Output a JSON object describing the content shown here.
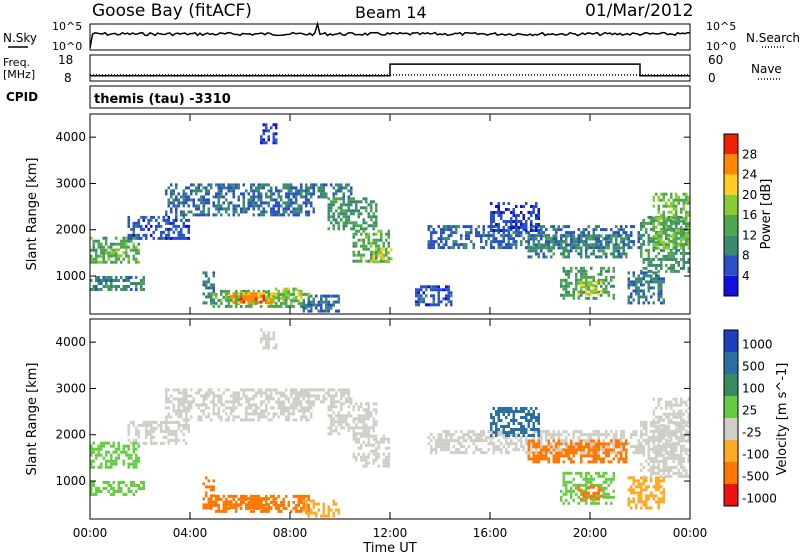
{
  "header": {
    "station": "Goose Bay (fitACF)",
    "beam": "Beam 14",
    "date": "01/Mar/2012"
  },
  "noise_panel": {
    "left_label": "N.Sky",
    "left_ticks": [
      "10^5",
      "10^0"
    ],
    "right_label": "N.Search",
    "right_ticks": [
      "10^5",
      "10^0"
    ]
  },
  "freq_panel": {
    "left_label_1": "Freq.",
    "left_label_2": "[MHz]",
    "left_ticks": [
      "18",
      "8"
    ],
    "right_label": "Nave",
    "right_ticks": [
      "60",
      "0"
    ]
  },
  "cpid_panel": {
    "label": "CPID",
    "value": "themis (tau) -3310"
  },
  "x_axis": {
    "label": "Time UT",
    "ticks": [
      "00:00",
      "04:00",
      "08:00",
      "12:00",
      "16:00",
      "20:00",
      "00:00"
    ]
  },
  "power_panel": {
    "ylabel": "Slant Range [km]",
    "yticks": [
      "1000",
      "2000",
      "3000",
      "4000"
    ],
    "colorbar_label": "Power [dB]",
    "colorbar_ticks": [
      "4",
      "8",
      "12",
      "16",
      "20",
      "24",
      "28"
    ],
    "colorbar_colors": [
      "#1010e0",
      "#2a50c8",
      "#3a8a70",
      "#4fa64f",
      "#88cc33",
      "#ffcc22",
      "#ff8800",
      "#ee2200"
    ]
  },
  "velocity_panel": {
    "ylabel": "Slant Range [km]",
    "yticks": [
      "1000",
      "2000",
      "3000",
      "4000"
    ],
    "colorbar_label": "Velocity [m s^-1]",
    "colorbar_ticks": [
      "1000",
      "500",
      "100",
      "25",
      "-25",
      "-100",
      "-500",
      "-1000"
    ],
    "colorbar_colors": [
      "#1a3fbf",
      "#2a6fa0",
      "#3a8a60",
      "#66cc44",
      "#cfcfc8",
      "#ffaa22",
      "#ff7700",
      "#ee1111"
    ]
  },
  "chart_data": {
    "type": "heatmap",
    "x_range_hours": [
      0,
      24
    ],
    "y_range_km": [
      180,
      4500
    ],
    "freq_mhz": {
      "segments": [
        {
          "from": 0,
          "to": 12,
          "value": 10
        },
        {
          "from": 12,
          "to": 22,
          "value": 14.5
        },
        {
          "from": 22,
          "to": 24,
          "value": 10
        }
      ]
    },
    "nave": {
      "value": 14
    },
    "power_bands": [
      {
        "t0": 0.0,
        "t1": 2.0,
        "r0": 1300,
        "r1": 1850,
        "v": 14
      },
      {
        "t0": 0.4,
        "t1": 1.5,
        "r0": 1450,
        "r1": 1600,
        "v": 17
      },
      {
        "t0": 0.0,
        "t1": 2.2,
        "r0": 700,
        "r1": 1000,
        "v": 10
      },
      {
        "t0": 1.5,
        "t1": 4.0,
        "r0": 1800,
        "r1": 2300,
        "v": 6
      },
      {
        "t0": 3.0,
        "t1": 9.0,
        "r0": 2300,
        "r1": 3000,
        "v": 8
      },
      {
        "t0": 8.0,
        "t1": 10.5,
        "r0": 2700,
        "r1": 3000,
        "v": 9
      },
      {
        "t0": 9.5,
        "t1": 11.5,
        "r0": 2000,
        "r1": 2700,
        "v": 11
      },
      {
        "t0": 10.5,
        "t1": 12.0,
        "r0": 1350,
        "r1": 2000,
        "v": 14
      },
      {
        "t0": 11.2,
        "t1": 12.0,
        "r0": 1300,
        "r1": 1600,
        "v": 20
      },
      {
        "t0": 4.5,
        "t1": 5.0,
        "r0": 400,
        "r1": 1100,
        "v": 9
      },
      {
        "t0": 4.8,
        "t1": 8.8,
        "r0": 350,
        "r1": 700,
        "v": 14
      },
      {
        "t0": 5.5,
        "t1": 7.5,
        "r0": 400,
        "r1": 650,
        "v": 24
      },
      {
        "t0": 6.0,
        "t1": 7.0,
        "r0": 450,
        "r1": 600,
        "v": 28
      },
      {
        "t0": 7.0,
        "t1": 8.5,
        "r0": 450,
        "r1": 750,
        "v": 18
      },
      {
        "t0": 8.5,
        "t1": 10.0,
        "r0": 250,
        "r1": 600,
        "v": 8
      },
      {
        "t0": 6.8,
        "t1": 7.5,
        "r0": 3900,
        "r1": 4300,
        "v": 5
      },
      {
        "t0": 13.0,
        "t1": 14.5,
        "r0": 400,
        "r1": 800,
        "v": 6
      },
      {
        "t0": 13.5,
        "t1": 22.0,
        "r0": 1600,
        "r1": 2100,
        "v": 7
      },
      {
        "t0": 17.5,
        "t1": 21.5,
        "r0": 1400,
        "r1": 1900,
        "v": 10
      },
      {
        "t0": 18.8,
        "t1": 21.0,
        "r0": 500,
        "r1": 1200,
        "v": 13
      },
      {
        "t0": 19.5,
        "t1": 20.5,
        "r0": 600,
        "r1": 900,
        "v": 20
      },
      {
        "t0": 21.5,
        "t1": 23.0,
        "r0": 400,
        "r1": 1100,
        "v": 9
      },
      {
        "t0": 22.0,
        "t1": 24.0,
        "r0": 1100,
        "r1": 2300,
        "v": 11
      },
      {
        "t0": 22.5,
        "t1": 24.0,
        "r0": 1600,
        "r1": 2800,
        "v": 16
      },
      {
        "t0": 16.0,
        "t1": 18.0,
        "r0": 2000,
        "r1": 2600,
        "v": 5
      }
    ],
    "velocity_bands": [
      {
        "t0": 0.0,
        "t1": 2.0,
        "r0": 1300,
        "r1": 1850,
        "v": 80
      },
      {
        "t0": 0.0,
        "t1": 2.2,
        "r0": 700,
        "r1": 1000,
        "v": 40
      },
      {
        "t0": 1.5,
        "t1": 4.0,
        "r0": 1800,
        "r1": 2300,
        "v": 0
      },
      {
        "t0": 3.0,
        "t1": 9.0,
        "r0": 2300,
        "r1": 3000,
        "v": 0
      },
      {
        "t0": 8.0,
        "t1": 10.5,
        "r0": 2700,
        "r1": 3000,
        "v": 5
      },
      {
        "t0": 9.5,
        "t1": 11.5,
        "r0": 2000,
        "r1": 2700,
        "v": 0
      },
      {
        "t0": 10.5,
        "t1": 12.0,
        "r0": 1350,
        "r1": 2000,
        "v": 10
      },
      {
        "t0": 4.5,
        "t1": 5.0,
        "r0": 400,
        "r1": 1100,
        "v": -150
      },
      {
        "t0": 4.8,
        "t1": 8.8,
        "r0": 350,
        "r1": 700,
        "v": -220
      },
      {
        "t0": 5.5,
        "t1": 7.5,
        "r0": 400,
        "r1": 650,
        "v": -350
      },
      {
        "t0": 8.5,
        "t1": 10.0,
        "r0": 250,
        "r1": 600,
        "v": -30
      },
      {
        "t0": 6.8,
        "t1": 7.5,
        "r0": 3900,
        "r1": 4300,
        "v": 0
      },
      {
        "t0": 13.5,
        "t1": 22.0,
        "r0": 1600,
        "r1": 2100,
        "v": 0
      },
      {
        "t0": 17.5,
        "t1": 21.5,
        "r0": 1400,
        "r1": 1900,
        "v": -200
      },
      {
        "t0": 18.8,
        "t1": 21.0,
        "r0": 500,
        "r1": 1200,
        "v": 60
      },
      {
        "t0": 19.5,
        "t1": 20.5,
        "r0": 600,
        "r1": 900,
        "v": -300
      },
      {
        "t0": 21.5,
        "t1": 23.0,
        "r0": 400,
        "r1": 1100,
        "v": -80
      },
      {
        "t0": 22.0,
        "t1": 24.0,
        "r0": 1100,
        "r1": 2300,
        "v": 0
      },
      {
        "t0": 22.5,
        "t1": 24.0,
        "r0": 1600,
        "r1": 2800,
        "v": 0
      },
      {
        "t0": 16.0,
        "t1": 18.0,
        "r0": 2000,
        "r1": 2600,
        "v": 150
      }
    ]
  }
}
